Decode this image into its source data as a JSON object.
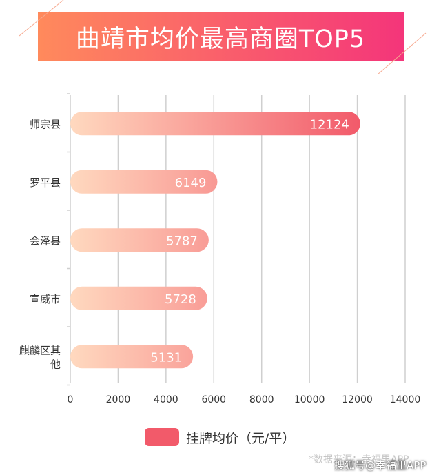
{
  "title": "曲靖市均价最高商圈TOP5",
  "colors": {
    "banner_start": "#ff8a5c",
    "banner_end": "#f4357a",
    "bar_start": "#ffd9bf",
    "bar_end": "#f25a6a",
    "grid": "#cfcfcf",
    "axis_text": "#333333"
  },
  "legend": {
    "label": "挂牌均价（元/平）"
  },
  "source": "*数据来源：幸福里APP",
  "watermark": "搜狐号@幸福里APP",
  "chart_data": {
    "type": "bar",
    "orientation": "horizontal",
    "categories": [
      "师宗县",
      "罗平县",
      "会泽县",
      "宣威市",
      "麒麟区其他"
    ],
    "category_label_lines": [
      [
        "师宗县"
      ],
      [
        "罗平县"
      ],
      [
        "会泽县"
      ],
      [
        "宣威市"
      ],
      [
        "麒麟区其",
        "他"
      ]
    ],
    "series": [
      {
        "name": "挂牌均价（元/平）",
        "values": [
          12124,
          6149,
          5787,
          5728,
          5131
        ]
      }
    ],
    "xlim": [
      0,
      14000
    ],
    "xticks": [
      0,
      2000,
      4000,
      6000,
      8000,
      10000,
      12000,
      14000
    ],
    "grid": true,
    "legend_position": "bottom"
  }
}
